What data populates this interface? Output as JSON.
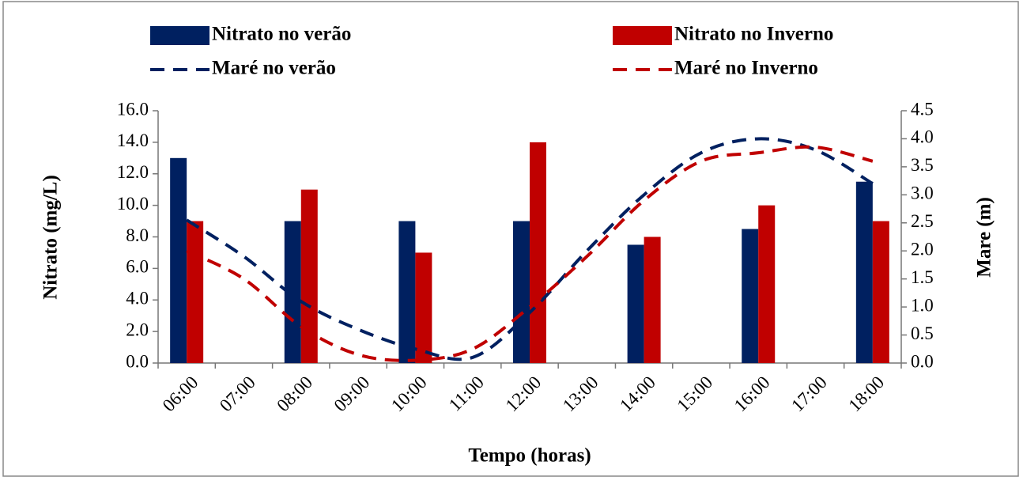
{
  "chart_data": {
    "type": "combo",
    "xlabel": "Tempo (horas)",
    "ylabel": "Nitrato (mg/L)",
    "y2label": "Mare (m)",
    "categories": [
      "06:00",
      "07:00",
      "08:00",
      "09:00",
      "10:00",
      "11:00",
      "12:00",
      "13:00",
      "14:00",
      "15:00",
      "16:00",
      "17:00",
      "18:00"
    ],
    "series": [
      {
        "name": "Nitrato no verão",
        "type": "bar",
        "color": "#002060",
        "values": [
          13,
          null,
          9,
          null,
          9,
          null,
          9,
          null,
          7.5,
          null,
          8.5,
          null,
          11.5
        ]
      },
      {
        "name": "Nitrato no Inverno",
        "type": "bar",
        "color": "#c00000",
        "values": [
          9,
          null,
          11,
          null,
          7,
          null,
          14,
          null,
          8,
          null,
          10,
          null,
          9
        ]
      },
      {
        "name": "Maré no verão",
        "type": "line",
        "axis": "y2",
        "color": "#002060",
        "values": [
          2.55,
          1.9,
          1.1,
          0.6,
          0.25,
          0.1,
          0.9,
          2.0,
          3.0,
          3.75,
          4.0,
          3.8,
          3.2
        ]
      },
      {
        "name": "Maré no Inverno",
        "type": "line",
        "axis": "y2",
        "color": "#c00000",
        "values": [
          2.0,
          1.5,
          0.65,
          0.15,
          0.05,
          0.25,
          1.0,
          1.9,
          2.9,
          3.6,
          3.75,
          3.85,
          3.6
        ]
      }
    ],
    "ylim": [
      0,
      16
    ],
    "yticks": [
      {
        "value": 0,
        "label": "0.0"
      },
      {
        "value": 2,
        "label": "2.0"
      },
      {
        "value": 4,
        "label": "4.0"
      },
      {
        "value": 6,
        "label": "6.0"
      },
      {
        "value": 8,
        "label": "8.0"
      },
      {
        "value": 10,
        "label": "10.0"
      },
      {
        "value": 12,
        "label": "12.0"
      },
      {
        "value": 14,
        "label": "14.0"
      },
      {
        "value": 16,
        "label": "16.0"
      }
    ],
    "y2lim": [
      0,
      4.5
    ],
    "y2ticks": [
      {
        "value": 0,
        "label": "0.0"
      },
      {
        "value": 0.5,
        "label": "0.5"
      },
      {
        "value": 1,
        "label": "1.0"
      },
      {
        "value": 1.5,
        "label": "1.5"
      },
      {
        "value": 2,
        "label": "2.0"
      },
      {
        "value": 2.5,
        "label": "2.5"
      },
      {
        "value": 3,
        "label": "3.0"
      },
      {
        "value": 3.5,
        "label": "3.5"
      },
      {
        "value": 4,
        "label": "4.0"
      },
      {
        "value": 4.5,
        "label": "4.5"
      }
    ]
  }
}
